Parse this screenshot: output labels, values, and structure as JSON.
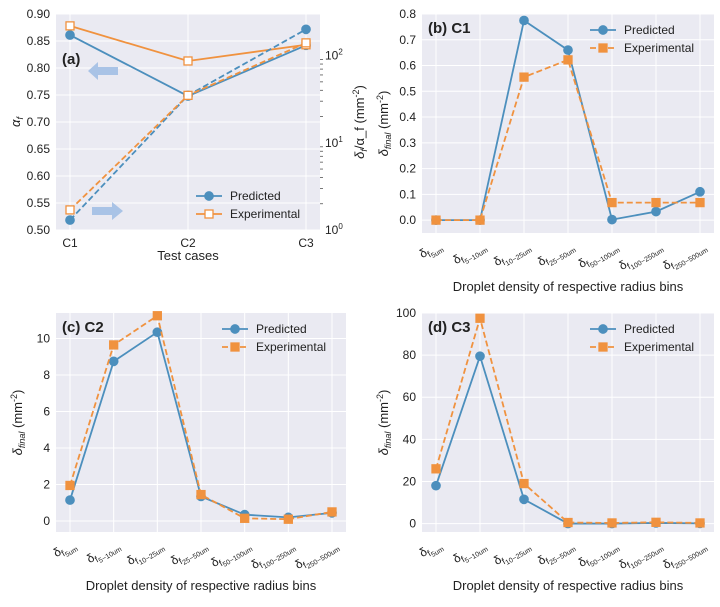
{
  "figure": {
    "background": "#ffffff",
    "plot_bg": "#eaeaf2",
    "grid_color": "#ffffff",
    "colors": {
      "predicted": "#4c8fbd",
      "experimental": "#f0923f",
      "arrow": "#a9c3e6"
    }
  },
  "chart_data": [
    {
      "id": "a",
      "panel_label": "(a)",
      "type": "line",
      "categories": [
        "C1",
        "C2",
        "C3"
      ],
      "xlabel": "Test cases",
      "ylabel_left": "α_f",
      "ylabel_right": "δ_f/α_f (mm^-2)",
      "ylim_left": [
        0.5,
        0.9
      ],
      "ylim_right": [
        1,
        300
      ],
      "yscale_right": "log",
      "yticks_left": [
        0.5,
        0.55,
        0.6,
        0.65,
        0.7,
        0.75,
        0.8,
        0.85,
        0.9
      ],
      "yticklabels_left": [
        "0.50",
        "0.55",
        "0.60",
        "0.65",
        "0.70",
        "0.75",
        "0.80",
        "0.85",
        "0.90"
      ],
      "yticks_right": [
        1,
        10,
        100
      ],
      "grid": true,
      "legend_position": "lower-right",
      "series": [
        {
          "name": "Predicted",
          "axis": "left",
          "style": "solid",
          "marker": "circle",
          "color": "#4c8fbd",
          "values": [
            0.861,
            0.748,
            0.842
          ]
        },
        {
          "name": "Experimental",
          "axis": "left",
          "style": "solid",
          "marker": "square",
          "color": "#f0923f",
          "values": [
            0.878,
            0.813,
            0.843
          ]
        },
        {
          "name": "Predicted",
          "axis": "right",
          "style": "dashed",
          "marker": "circle",
          "color": "#4c8fbd",
          "values": [
            1.3,
            35,
            200
          ]
        },
        {
          "name": "Experimental",
          "axis": "right",
          "style": "dashed",
          "marker": "square",
          "color": "#f0923f",
          "values": [
            1.7,
            35,
            140
          ]
        }
      ],
      "arrows": [
        {
          "direction": "left",
          "points_to": "left axis"
        },
        {
          "direction": "right",
          "points_to": "right axis"
        }
      ]
    },
    {
      "id": "b",
      "panel_label": "(b) C1",
      "type": "line",
      "categories": [
        "5um",
        "5-10um",
        "10-25um",
        "25-50um",
        "50-100um",
        "100-250um",
        "250-500um"
      ],
      "xlabel": "Droplet density of respective radius bins",
      "ylabel": "δ_final (mm^-2)",
      "ylim": [
        -0.05,
        0.8
      ],
      "yticks": [
        0,
        0.1,
        0.2,
        0.3,
        0.4,
        0.5,
        0.6,
        0.7,
        0.8
      ],
      "yticklabels": [
        "0.0",
        "0.1",
        "0.2",
        "0.3",
        "0.4",
        "0.5",
        "0.6",
        "0.7",
        "0.8"
      ],
      "grid": true,
      "legend_position": "top-right",
      "series": [
        {
          "name": "Predicted",
          "style": "solid",
          "marker": "circle",
          "color": "#4c8fbd",
          "values": [
            0,
            0,
            0.775,
            0.66,
            0.002,
            0.033,
            0.11
          ]
        },
        {
          "name": "Experimental",
          "style": "dashed",
          "marker": "square",
          "color": "#f0923f",
          "values": [
            0,
            0,
            0.555,
            0.622,
            0.068,
            0.068,
            0.068
          ]
        }
      ]
    },
    {
      "id": "c",
      "panel_label": "(c) C2",
      "type": "line",
      "categories": [
        "5um",
        "5-10um",
        "10-25um",
        "25-50um",
        "50-100um",
        "100-250um",
        "250-500um"
      ],
      "xlabel": "Droplet density of respective radius bins",
      "ylabel": "δ_final (mm^-2)",
      "ylim": [
        -0.6,
        11.4
      ],
      "yticks": [
        0,
        2,
        4,
        6,
        8,
        10
      ],
      "yticklabels": [
        "0",
        "2",
        "4",
        "6",
        "8",
        "10"
      ],
      "grid": true,
      "legend_position": "top-right",
      "series": [
        {
          "name": "Predicted",
          "style": "solid",
          "marker": "circle",
          "color": "#4c8fbd",
          "values": [
            1.15,
            8.75,
            10.35,
            1.35,
            0.35,
            0.2,
            0.45
          ]
        },
        {
          "name": "Experimental",
          "style": "dashed",
          "marker": "square",
          "color": "#f0923f",
          "values": [
            1.95,
            9.65,
            11.25,
            1.45,
            0.15,
            0.1,
            0.5
          ]
        }
      ]
    },
    {
      "id": "d",
      "panel_label": "(d) C3",
      "type": "line",
      "categories": [
        "5um",
        "5-10um",
        "10-25um",
        "25-50um",
        "50-100um",
        "100-250um",
        "250-500um"
      ],
      "xlabel": "Droplet density of respective radius bins",
      "ylabel": "δ_final (mm^-2)",
      "ylim": [
        -4,
        100
      ],
      "yticks": [
        0,
        20,
        40,
        60,
        80,
        100
      ],
      "yticklabels": [
        "0",
        "20",
        "40",
        "60",
        "80",
        "100"
      ],
      "grid": true,
      "legend_position": "top-right",
      "series": [
        {
          "name": "Predicted",
          "style": "solid",
          "marker": "circle",
          "color": "#4c8fbd",
          "values": [
            18,
            79.5,
            11.5,
            0,
            0,
            0.3,
            0.1
          ]
        },
        {
          "name": "Experimental",
          "style": "dashed",
          "marker": "square",
          "color": "#f0923f",
          "values": [
            26,
            97.5,
            19,
            0.5,
            0.3,
            0.6,
            0.3
          ]
        }
      ]
    }
  ]
}
